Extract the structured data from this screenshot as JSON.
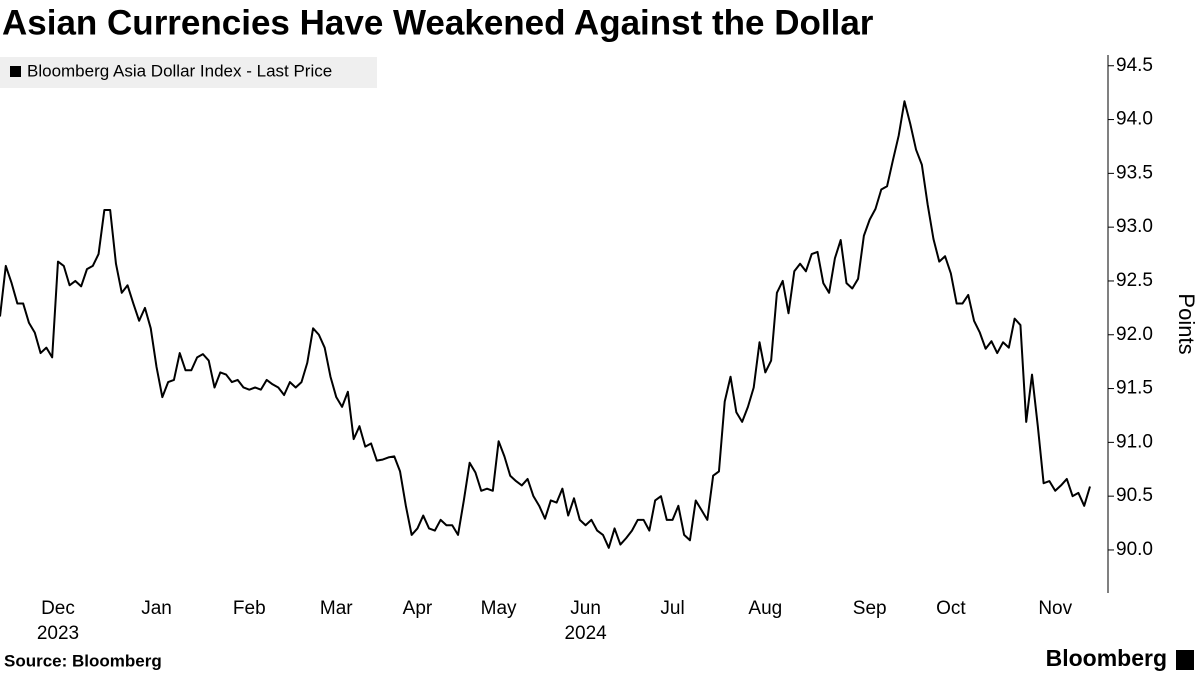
{
  "chart_data": {
    "type": "line",
    "title": "Asian Currencies Have Weakened Against the Dollar",
    "ylabel": "Points",
    "source": "Source: Bloomberg",
    "logo": "Bloomberg",
    "categories": [
      null,
      null,
      null,
      null,
      null,
      null,
      null,
      null,
      null,
      null,
      "Dec",
      null,
      null,
      null,
      null,
      null,
      null,
      null,
      null,
      null,
      null,
      null,
      null,
      null,
      null,
      null,
      null,
      "Jan",
      null,
      null,
      null,
      null,
      null,
      null,
      null,
      null,
      null,
      null,
      null,
      null,
      null,
      null,
      null,
      "Feb",
      null,
      null,
      null,
      null,
      null,
      null,
      null,
      null,
      null,
      null,
      null,
      null,
      null,
      null,
      "Mar",
      null,
      null,
      null,
      null,
      null,
      null,
      null,
      null,
      null,
      null,
      null,
      null,
      null,
      "Apr",
      null,
      null,
      null,
      null,
      null,
      null,
      null,
      null,
      null,
      null,
      null,
      null,
      null,
      "May",
      null,
      null,
      null,
      null,
      null,
      null,
      null,
      null,
      null,
      null,
      null,
      null,
      null,
      null,
      "Jun",
      null,
      null,
      null,
      null,
      null,
      null,
      null,
      null,
      null,
      null,
      null,
      null,
      null,
      null,
      "Jul",
      null,
      null,
      null,
      null,
      null,
      null,
      null,
      null,
      null,
      null,
      null,
      null,
      null,
      null,
      null,
      "Aug",
      null,
      null,
      null,
      null,
      null,
      null,
      null,
      null,
      null,
      null,
      null,
      null,
      null,
      null,
      null,
      null,
      null,
      "Sep",
      null,
      null,
      null,
      null,
      null,
      null,
      null,
      null,
      null,
      null,
      null,
      null,
      null,
      "Oct",
      null,
      null,
      null,
      null,
      null,
      null,
      null,
      null,
      null,
      null,
      null,
      null,
      null,
      null,
      null,
      null,
      null,
      "Nov",
      null,
      null,
      null,
      null,
      null,
      null
    ],
    "year_labels": [
      null,
      null,
      null,
      null,
      null,
      null,
      null,
      null,
      null,
      null,
      "2023",
      null,
      null,
      null,
      null,
      null,
      null,
      null,
      null,
      null,
      null,
      null,
      null,
      null,
      null,
      null,
      null,
      null,
      null,
      null,
      null,
      null,
      null,
      null,
      null,
      null,
      null,
      null,
      null,
      null,
      null,
      null,
      null,
      null,
      null,
      null,
      null,
      null,
      null,
      null,
      null,
      null,
      null,
      null,
      null,
      null,
      null,
      null,
      null,
      null,
      null,
      null,
      null,
      null,
      null,
      null,
      null,
      null,
      null,
      null,
      null,
      null,
      null,
      null,
      null,
      null,
      null,
      null,
      null,
      null,
      null,
      null,
      null,
      null,
      null,
      null,
      null,
      null,
      null,
      null,
      null,
      null,
      null,
      null,
      null,
      null,
      null,
      null,
      null,
      null,
      null,
      "2024",
      null,
      null,
      null,
      null,
      null,
      null,
      null,
      null,
      null,
      null,
      null,
      null,
      null,
      null,
      null,
      null,
      null,
      null,
      null,
      null,
      null,
      null,
      null,
      null,
      null,
      null,
      null,
      null,
      null,
      null,
      null,
      null,
      null,
      null,
      null,
      null,
      null,
      null,
      null,
      null,
      null,
      null,
      null,
      null,
      null,
      null,
      null,
      null,
      null,
      null,
      null,
      null,
      null,
      null,
      null,
      null,
      null,
      null,
      null,
      null,
      null,
      null,
      null,
      null,
      null,
      null,
      null,
      null,
      null,
      null,
      null,
      null,
      null,
      null,
      null,
      null,
      null,
      null,
      null,
      null,
      null,
      null,
      null,
      null,
      null,
      null,
      null
    ],
    "series": [
      {
        "name": "Bloomberg Asia Dollar Index - Last Price",
        "color": "#000000",
        "values": [
          92.17,
          92.64,
          92.48,
          92.29,
          92.29,
          92.11,
          92.02,
          91.83,
          91.88,
          91.79,
          92.68,
          92.64,
          92.46,
          92.5,
          92.45,
          92.61,
          92.64,
          92.75,
          93.16,
          93.16,
          92.66,
          92.39,
          92.46,
          92.29,
          92.13,
          92.25,
          92.06,
          91.7,
          91.42,
          91.56,
          91.58,
          91.83,
          91.67,
          91.67,
          91.79,
          91.82,
          91.76,
          91.51,
          91.65,
          91.63,
          91.56,
          91.58,
          91.51,
          91.49,
          91.51,
          91.49,
          91.58,
          91.54,
          91.51,
          91.44,
          91.56,
          91.51,
          91.56,
          91.74,
          92.06,
          92.0,
          91.88,
          91.61,
          91.42,
          91.33,
          91.47,
          91.03,
          91.15,
          90.96,
          90.99,
          90.83,
          90.84,
          90.86,
          90.87,
          90.73,
          90.41,
          90.14,
          90.2,
          90.32,
          90.2,
          90.18,
          90.28,
          90.23,
          90.23,
          90.14,
          90.46,
          90.81,
          90.72,
          90.55,
          90.57,
          90.55,
          91.01,
          90.87,
          90.69,
          90.64,
          90.6,
          90.66,
          90.5,
          90.41,
          90.29,
          90.46,
          90.44,
          90.57,
          90.32,
          90.48,
          90.28,
          90.23,
          90.28,
          90.18,
          90.14,
          90.02,
          90.2,
          90.05,
          90.11,
          90.18,
          90.28,
          90.28,
          90.18,
          90.46,
          90.5,
          90.28,
          90.28,
          90.41,
          90.14,
          90.09,
          90.46,
          90.37,
          90.28,
          90.69,
          90.73,
          91.38,
          91.61,
          91.28,
          91.19,
          91.33,
          91.51,
          91.93,
          91.65,
          91.76,
          92.39,
          92.5,
          92.2,
          92.59,
          92.66,
          92.59,
          92.75,
          92.77,
          92.48,
          92.39,
          92.71,
          92.88,
          92.48,
          92.43,
          92.52,
          92.92,
          93.07,
          93.17,
          93.35,
          93.38,
          93.62,
          93.85,
          94.17,
          93.96,
          93.72,
          93.58,
          93.21,
          92.89,
          92.68,
          92.73,
          92.57,
          92.29,
          92.29,
          92.37,
          92.13,
          92.02,
          91.87,
          91.94,
          91.83,
          91.93,
          91.88,
          92.15,
          92.09,
          91.19,
          91.63,
          91.15,
          90.62,
          90.64,
          90.55,
          90.6,
          90.66,
          90.5,
          90.53,
          90.41,
          90.59
        ]
      }
    ],
    "ylim": [
      89.6,
      94.6
    ],
    "yticks": [
      {
        "value": 90,
        "label": "90.0"
      },
      90.5,
      {
        "value": 91,
        "label": "91.0"
      },
      91.5,
      {
        "value": 92,
        "label": "92.0"
      },
      92.5,
      {
        "value": 93,
        "label": "93.0"
      },
      93.5,
      {
        "value": 94,
        "label": "94.0"
      },
      94.5
    ],
    "grid": false
  }
}
